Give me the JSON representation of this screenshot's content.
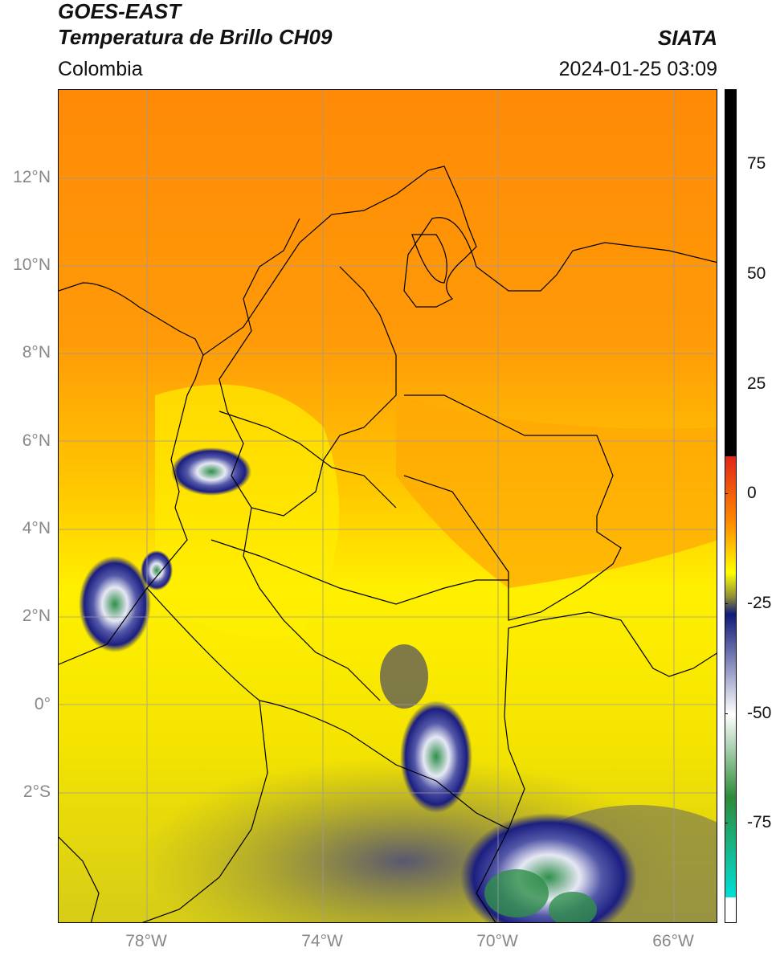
{
  "header": {
    "title_line1": "GOES-EAST",
    "title_line2": "Temperatura de Brillo CH09",
    "brand": "SIATA",
    "region": "Colombia",
    "timestamp": "2024-01-25 03:09"
  },
  "axes": {
    "lat_labels": [
      "12°N",
      "10°N",
      "8°N",
      "6°N",
      "4°N",
      "2°N",
      "0°",
      "2°S"
    ],
    "lon_labels": [
      "78°W",
      "74°W",
      "70°W",
      "66°W"
    ]
  },
  "colorbar": {
    "tick_labels": [
      "75",
      "50",
      "25",
      "0",
      "-25",
      "-50",
      "-75"
    ],
    "colors": {
      "hot": "#000000",
      "warm": "#e0251a",
      "orange": "#ff8c00",
      "yellow": "#ffff00",
      "olive": "#8a8a3a",
      "navy": "#101a7a",
      "white": "#ffffff",
      "green": "#2e8b3a",
      "cyan": "#00dfd6"
    }
  },
  "map_colors": {
    "ocean_north": "#ff8f0a",
    "central": "#f7e400",
    "south": "#e3d500",
    "cloud_dark": "#1c1f80",
    "cloud_light": "#e6e8f4",
    "cloud_green": "#2f8f4a",
    "gridline": "#9a9a9a",
    "border": "#000000"
  }
}
